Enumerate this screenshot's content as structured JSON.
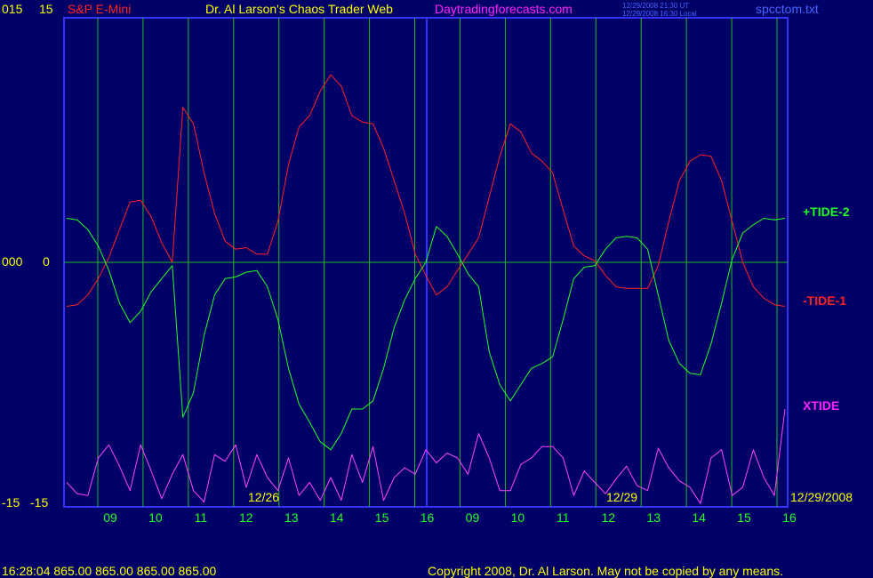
{
  "header": {
    "left_price": "015",
    "left_value": "15",
    "instrument": "S&P E-Mini",
    "title": "Dr. Al Larson's Chaos Trader Web",
    "site": "Daytradingforecasts.com",
    "time_ut": "12/29/2008 21:30 UT",
    "time_local": "12/29/2008 16:30 Local",
    "filename": "spcctom.txt"
  },
  "axis_left": {
    "mid_price": "000",
    "mid_value": "0",
    "low_price": "-15",
    "low_value": "-15"
  },
  "legend": {
    "tide2": "+TIDE-2",
    "tide1": "-TIDE-1",
    "xtide": "XTIDE"
  },
  "date_labels": {
    "d1": "12/26",
    "d2": "12/29",
    "d3": "12/29/2008"
  },
  "footer": {
    "quote": "16:28:04  865.00 865.00 865.00 865.00",
    "copyright": "Copyright 2008, Dr. Al Larson. May not be copied by any means."
  },
  "colors": {
    "background": "#000066",
    "frame": "#3333ff",
    "grid": "#22bb22",
    "tide1": "#ff2222",
    "tide2": "#22ff22",
    "xtide": "#ff44ff",
    "label_red": "#ff2222",
    "label_yellow": "#ffff00",
    "label_magenta": "#ff22ff",
    "label_blue": "#4466ff",
    "label_green": "#22ff22"
  },
  "chart_data": {
    "type": "line",
    "title": "S&P E-Mini",
    "ylim": [
      -15,
      15
    ],
    "x_ticks": [
      "09",
      "10",
      "11",
      "12",
      "13",
      "14",
      "15",
      "16",
      "09",
      "10",
      "11",
      "12",
      "13",
      "14",
      "15",
      "16"
    ],
    "series": [
      {
        "name": "-TIDE-1",
        "color": "#ff2222",
        "values": [
          -2.7,
          -2.6,
          -2.0,
          -1.0,
          0.3,
          2.0,
          3.7,
          3.8,
          2.8,
          1.2,
          0.0,
          9.5,
          8.5,
          5.5,
          3.0,
          1.3,
          0.8,
          0.9,
          0.5,
          0.5,
          2.5,
          6.0,
          8.3,
          9.0,
          10.5,
          11.5,
          10.8,
          9.0,
          8.6,
          8.5,
          7.0,
          5.0,
          3.0,
          0.5,
          -0.8,
          -2.0,
          -1.5,
          -0.5,
          0.5,
          1.5,
          4.0,
          6.5,
          8.5,
          8.0,
          6.7,
          6.2,
          5.5,
          3.2,
          1.0,
          0.4,
          0.1,
          -0.8,
          -1.5,
          -1.6,
          -1.6,
          -1.6,
          -0.2,
          2.5,
          5.0,
          6.2,
          6.6,
          6.5,
          5.0,
          2.5,
          0.0,
          -1.5,
          -2.2,
          -2.6,
          -2.7
        ]
      },
      {
        "name": "+TIDE-2",
        "color": "#22ff22",
        "values": [
          2.7,
          2.6,
          2.0,
          1.0,
          -0.5,
          -2.5,
          -3.7,
          -3.0,
          -1.8,
          -1.0,
          -0.2,
          -9.5,
          -8.0,
          -4.5,
          -2.0,
          -1.0,
          -0.9,
          -0.6,
          -0.5,
          -1.5,
          -3.5,
          -6.5,
          -8.7,
          -9.8,
          -11.0,
          -11.5,
          -10.5,
          -9.0,
          -9.0,
          -8.5,
          -6.5,
          -4.0,
          -2.3,
          -1.0,
          0.0,
          2.2,
          1.6,
          0.5,
          -0.7,
          -1.5,
          -5.5,
          -7.5,
          -8.5,
          -7.5,
          -6.5,
          -6.2,
          -5.8,
          -3.5,
          -1.0,
          -0.3,
          -0.2,
          0.8,
          1.5,
          1.6,
          1.5,
          0.8,
          -2.0,
          -4.8,
          -6.2,
          -6.8,
          -6.9,
          -5.0,
          -2.5,
          0.2,
          1.8,
          2.3,
          2.7,
          2.6,
          2.7
        ]
      },
      {
        "name": "XTIDE",
        "color": "#ff44ff",
        "values": [
          -13.5,
          -14.2,
          -14.3,
          -12.0,
          -11.2,
          -12.5,
          -14.0,
          -11.2,
          -12.8,
          -14.5,
          -13.0,
          -11.8,
          -14.0,
          -14.7,
          -11.8,
          -12.2,
          -11.2,
          -13.8,
          -11.8,
          -13.2,
          -14.0,
          -12.0,
          -14.3,
          -13.5,
          -14.6,
          -13.2,
          -14.6,
          -11.8,
          -13.5,
          -11.3,
          -14.6,
          -13.2,
          -12.6,
          -13.0,
          -11.5,
          -12.3,
          -11.7,
          -12.0,
          -13.0,
          -10.5,
          -12.0,
          -14.0,
          -14.0,
          -12.4,
          -12.0,
          -11.3,
          -11.3,
          -12.0,
          -14.3,
          -12.8,
          -13.5,
          -14.2,
          -13.3,
          -12.5,
          -13.7,
          -14.0,
          -11.4,
          -12.6,
          -13.4,
          -13.8,
          -14.8,
          -12.0,
          -11.5,
          -14.3,
          -13.8,
          -11.5,
          -13.2,
          -14.3,
          -9.0
        ]
      }
    ]
  }
}
